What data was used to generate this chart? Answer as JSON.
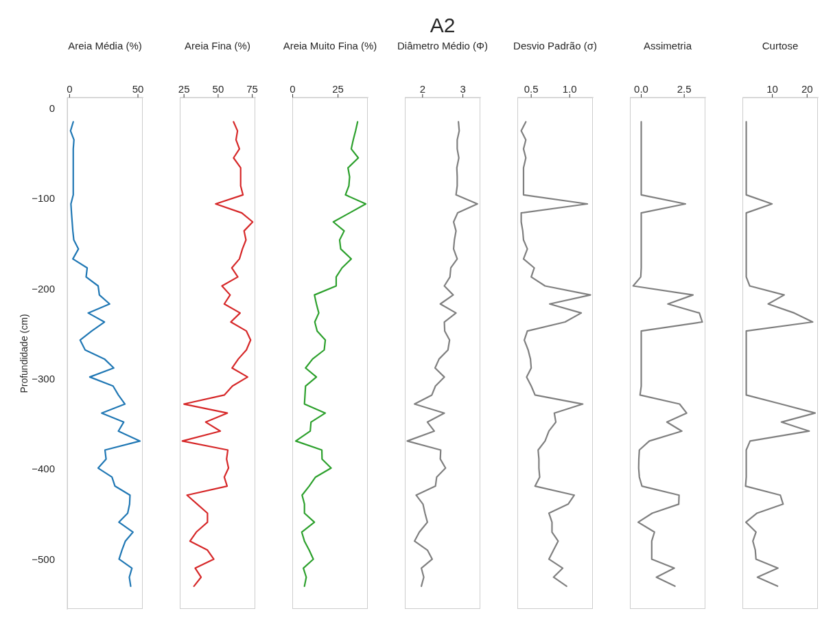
{
  "chart_data": [
    {
      "type": "line",
      "xlabel": "Areia Média (%)",
      "ylabel": "Profundidade (cm)",
      "xlim": [
        -1.7,
        54
      ],
      "xticks": [
        0,
        50
      ],
      "ylim": [
        -556,
        12
      ],
      "yticks": [
        0,
        {
          "value": -100,
          "label": "−100"
        },
        {
          "value": -200,
          "label": "−200"
        },
        {
          "value": -300,
          "label": "−300"
        },
        {
          "value": -400,
          "label": "−400"
        },
        {
          "value": -500,
          "label": "−500"
        }
      ],
      "series": [
        {
          "color": "#1f77b4",
          "x": [
            2.7,
            0.7,
            3.2,
            2.7,
            2.7,
            2.7,
            2.7,
            2.7,
            2.7,
            1.0,
            1.4,
            1.9,
            2.4,
            3.1,
            6.5,
            2.4,
            12.9,
            12.1,
            20.9,
            21.8,
            29.3,
            13.6,
            25.5,
            16.2,
            7.7,
            11.4,
            25.5,
            32.3,
            14.8,
            31.8,
            35.7,
            40.5,
            23.5,
            39.6,
            35.7,
            51.5,
            25.9,
            26.7,
            20.9,
            31.0,
            33.2,
            44.2,
            43.9,
            42.5,
            36.1,
            46.4,
            40.8,
            38.3,
            36.2,
            45.6,
            43.7,
            44.7
          ],
          "values": [
            -15,
            -25,
            -35,
            -45,
            -55,
            -66,
            -76,
            -86,
            -96,
            -106,
            -116,
            -126,
            -136,
            -146,
            -156,
            -167,
            -177,
            -187,
            -197,
            -207,
            -217,
            -227,
            -237,
            -247,
            -257,
            -268,
            -278,
            -288,
            -298,
            -308,
            -318,
            -328,
            -338,
            -348,
            -358,
            -369,
            -379,
            -389,
            -399,
            -409,
            -419,
            -429,
            -439,
            -449,
            -459,
            -470,
            -480,
            -490,
            -500,
            -510,
            -520,
            -530
          ]
        }
      ]
    },
    {
      "type": "line",
      "xlabel": "Areia Fina (%)",
      "xlim": [
        21.9,
        77.7
      ],
      "xticks": [
        25,
        50,
        75
      ],
      "ylim": [
        -556,
        12
      ],
      "tick_labels": "x",
      "series": [
        {
          "color": "#d62728",
          "x": [
            61.3,
            64.2,
            63.1,
            65.6,
            61.3,
            66.5,
            66.5,
            66.5,
            68.2,
            48.2,
            67.3,
            75.3,
            69.0,
            70.4,
            67.8,
            65.6,
            60.0,
            64.4,
            52.8,
            58.8,
            54.5,
            66.1,
            59.3,
            70.7,
            73.8,
            70.7,
            64.8,
            60.2,
            71.6,
            60.5,
            54.5,
            25.0,
            56.7,
            40.9,
            51.6,
            23.8,
            57.1,
            56.2,
            57.6,
            54.5,
            56.6,
            27.2,
            34.7,
            42.2,
            42.2,
            34.0,
            29.4,
            42.2,
            46.8,
            33.2,
            37.5,
            32.3
          ],
          "values": [
            -15,
            -25,
            -35,
            -45,
            -55,
            -66,
            -76,
            -86,
            -96,
            -106,
            -116,
            -126,
            -136,
            -146,
            -156,
            -167,
            -177,
            -187,
            -197,
            -207,
            -217,
            -227,
            -237,
            -247,
            -257,
            -268,
            -278,
            -288,
            -298,
            -308,
            -318,
            -328,
            -338,
            -348,
            -358,
            -369,
            -379,
            -389,
            -399,
            -409,
            -419,
            -429,
            -439,
            -449,
            -459,
            -470,
            -480,
            -490,
            -500,
            -510,
            -520,
            -530
          ]
        }
      ]
    },
    {
      "type": "line",
      "xlabel": "Areia Muito Fina (%)",
      "xlim": [
        -0.2,
        41.8
      ],
      "xticks": [
        0,
        25
      ],
      "ylim": [
        -556,
        12
      ],
      "tick_labels": "x",
      "series": [
        {
          "color": "#2ca02c",
          "x": [
            35.8,
            34.7,
            33.4,
            32.3,
            36.2,
            30.5,
            31.4,
            31.0,
            29.1,
            40.3,
            31.4,
            22.4,
            28.4,
            25.9,
            26.5,
            32.3,
            27.2,
            24.0,
            24.0,
            12.0,
            13.1,
            14.4,
            12.2,
            13.5,
            18.0,
            17.4,
            11.0,
            7.1,
            13.1,
            7.1,
            6.8,
            6.5,
            18.0,
            10.1,
            9.7,
            1.7,
            16.1,
            16.2,
            21.2,
            12.6,
            9.1,
            5.2,
            6.5,
            6.5,
            12.0,
            5.0,
            6.5,
            9.1,
            11.4,
            5.9,
            7.5,
            6.5
          ],
          "values": [
            -15,
            -25,
            -35,
            -45,
            -55,
            -66,
            -76,
            -86,
            -96,
            -106,
            -116,
            -126,
            -136,
            -146,
            -156,
            -167,
            -177,
            -187,
            -197,
            -207,
            -217,
            -227,
            -237,
            -247,
            -257,
            -268,
            -278,
            -288,
            -298,
            -308,
            -318,
            -328,
            -338,
            -348,
            -358,
            -369,
            -379,
            -389,
            -399,
            -409,
            -419,
            -429,
            -439,
            -449,
            -459,
            -470,
            -480,
            -490,
            -500,
            -510,
            -520,
            -530
          ]
        }
      ]
    },
    {
      "type": "line",
      "title": "A2",
      "xlabel": "Diâmetro Médio (Φ)",
      "xlim": [
        1.56,
        3.45
      ],
      "xticks": [
        2,
        3
      ],
      "ylim": [
        -556,
        12
      ],
      "tick_labels": "x",
      "series": [
        {
          "color": "#7f7f7f",
          "x": [
            2.89,
            2.91,
            2.86,
            2.86,
            2.9,
            2.85,
            2.86,
            2.86,
            2.83,
            3.36,
            2.87,
            2.77,
            2.83,
            2.79,
            2.77,
            2.86,
            2.7,
            2.68,
            2.54,
            2.76,
            2.44,
            2.83,
            2.54,
            2.55,
            2.67,
            2.63,
            2.41,
            2.31,
            2.54,
            2.32,
            2.23,
            1.8,
            2.54,
            2.12,
            2.29,
            1.62,
            2.45,
            2.44,
            2.57,
            2.35,
            2.32,
            1.84,
            2.01,
            2.06,
            2.12,
            1.92,
            1.8,
            2.12,
            2.24,
            1.97,
            2.03,
            1.97
          ],
          "values": [
            -15,
            -25,
            -35,
            -45,
            -55,
            -66,
            -76,
            -86,
            -96,
            -106,
            -116,
            -126,
            -136,
            -146,
            -156,
            -167,
            -177,
            -187,
            -197,
            -207,
            -217,
            -227,
            -237,
            -247,
            -257,
            -268,
            -278,
            -288,
            -298,
            -308,
            -318,
            -328,
            -338,
            -348,
            -358,
            -369,
            -379,
            -389,
            -399,
            -409,
            -419,
            -429,
            -439,
            -449,
            -459,
            -470,
            -480,
            -490,
            -500,
            -510,
            -520,
            -530
          ]
        }
      ]
    },
    {
      "type": "line",
      "xlabel": "Desvio Padrão (σ)",
      "xlim": [
        0.32,
        1.31
      ],
      "xticks": [
        {
          "value": 0.5,
          "label": "0.5"
        },
        {
          "value": 1,
          "label": "1.0"
        }
      ],
      "ylim": [
        -556,
        12
      ],
      "tick_labels": "x",
      "series": [
        {
          "color": "#7f7f7f",
          "x": [
            0.43,
            0.37,
            0.43,
            0.4,
            0.43,
            0.4,
            0.4,
            0.4,
            0.4,
            1.23,
            0.37,
            0.37,
            0.39,
            0.4,
            0.45,
            0.4,
            0.54,
            0.5,
            0.68,
            1.27,
            0.74,
            1.15,
            0.94,
            0.45,
            0.41,
            0.46,
            0.49,
            0.5,
            0.44,
            0.5,
            0.55,
            1.17,
            0.8,
            0.82,
            0.73,
            0.68,
            0.59,
            0.6,
            0.6,
            0.61,
            0.55,
            1.06,
            0.98,
            0.73,
            0.77,
            0.77,
            0.85,
            0.79,
            0.73,
            0.91,
            0.79,
            0.96
          ],
          "values": [
            -15,
            -25,
            -35,
            -45,
            -55,
            -66,
            -76,
            -86,
            -96,
            -106,
            -116,
            -126,
            -136,
            -146,
            -156,
            -167,
            -177,
            -187,
            -197,
            -207,
            -217,
            -227,
            -237,
            -247,
            -257,
            -268,
            -278,
            -288,
            -298,
            -308,
            -318,
            -328,
            -338,
            -348,
            -358,
            -369,
            -379,
            -389,
            -399,
            -409,
            -419,
            -429,
            -439,
            -449,
            -459,
            -470,
            -480,
            -490,
            -500,
            -510,
            -520,
            -530
          ]
        }
      ]
    },
    {
      "type": "line",
      "xlabel": "Assimetria",
      "xlim": [
        -0.66,
        3.77
      ],
      "xticks": [
        {
          "value": 0,
          "label": "0.0"
        },
        {
          "value": 2.5,
          "label": "2.5"
        }
      ],
      "ylim": [
        -556,
        12
      ],
      "tick_labels": "x",
      "series": [
        {
          "color": "#7f7f7f",
          "x": [
            0,
            0,
            0,
            0,
            0,
            0,
            0,
            0,
            0,
            2.57,
            0,
            0,
            0,
            0,
            0,
            0,
            0,
            -0.03,
            -0.47,
            3.01,
            1.55,
            3.38,
            3.55,
            0,
            0,
            0,
            0,
            0,
            0,
            0,
            -0.07,
            2.23,
            2.64,
            1.49,
            2.36,
            0.47,
            -0.11,
            -0.14,
            -0.15,
            -0.11,
            0.04,
            2.2,
            2.18,
            0.64,
            -0.18,
            0.77,
            0.61,
            0.61,
            0.61,
            1.92,
            0.88,
            1.96
          ],
          "values": [
            -15,
            -25,
            -35,
            -45,
            -55,
            -66,
            -76,
            -86,
            -96,
            -106,
            -116,
            -126,
            -136,
            -146,
            -156,
            -167,
            -177,
            -187,
            -197,
            -207,
            -217,
            -227,
            -237,
            -247,
            -257,
            -268,
            -278,
            -288,
            -298,
            -308,
            -318,
            -328,
            -338,
            -348,
            -358,
            -369,
            -379,
            -389,
            -399,
            -409,
            -419,
            -429,
            -439,
            -449,
            -459,
            -470,
            -480,
            -490,
            -500,
            -510,
            -520,
            -530
          ]
        }
      ]
    },
    {
      "type": "line",
      "xlabel": "Curtose",
      "xlim": [
        1.4,
        23.3
      ],
      "xticks": [
        10,
        20
      ],
      "ylim": [
        -556,
        12
      ],
      "tick_labels": "x",
      "series": [
        {
          "color": "#7f7f7f",
          "x": [
            2.5,
            2.5,
            2.5,
            2.5,
            2.5,
            2.5,
            2.5,
            2.5,
            2.5,
            9.9,
            2.5,
            2.5,
            2.5,
            2.5,
            2.5,
            2.5,
            2.5,
            2.5,
            3.5,
            13.4,
            8.8,
            16.3,
            21.6,
            2.5,
            2.5,
            2.5,
            2.5,
            2.5,
            2.5,
            2.5,
            2.5,
            12.5,
            22.3,
            12.6,
            20.6,
            3.6,
            2.5,
            2.5,
            2.5,
            2.5,
            2.3,
            12.3,
            13.1,
            5.6,
            2.4,
            5.3,
            4.4,
            5.1,
            5.3,
            11.6,
            5.7,
            11.5
          ],
          "values": [
            -15,
            -25,
            -35,
            -45,
            -55,
            -66,
            -76,
            -86,
            -96,
            -106,
            -116,
            -126,
            -136,
            -146,
            -156,
            -167,
            -177,
            -187,
            -197,
            -207,
            -217,
            -227,
            -237,
            -247,
            -257,
            -268,
            -278,
            -288,
            -298,
            -308,
            -318,
            -328,
            -338,
            -348,
            -358,
            -369,
            -379,
            -389,
            -399,
            -409,
            -419,
            -429,
            -439,
            -449,
            -459,
            -470,
            -480,
            -490,
            -500,
            -510,
            -520,
            -530
          ]
        }
      ]
    }
  ]
}
